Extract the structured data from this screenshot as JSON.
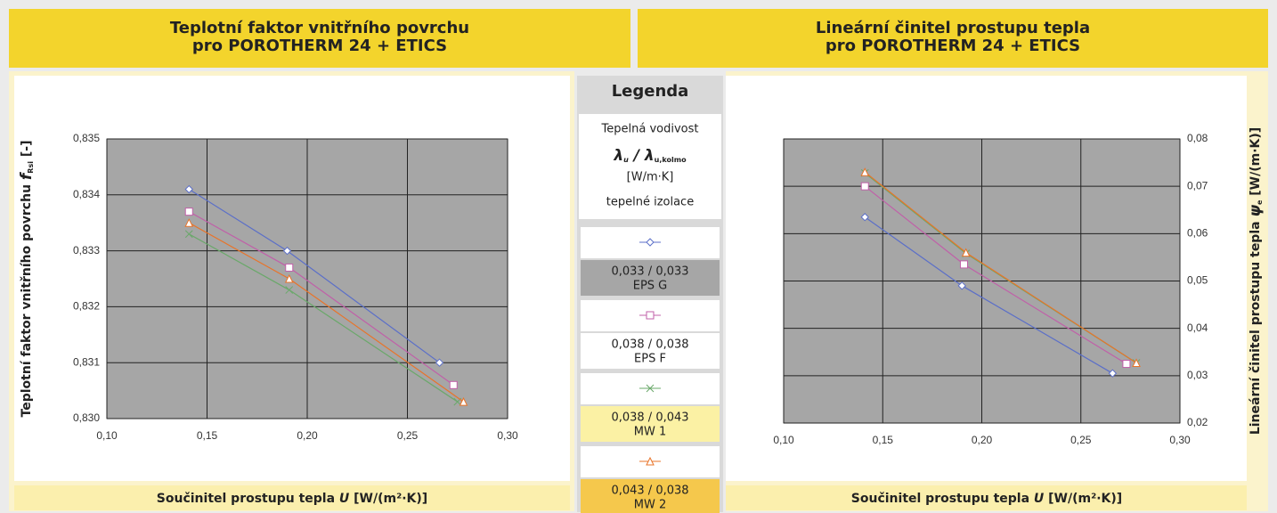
{
  "chart_data": [
    {
      "type": "line",
      "title": [
        "Teplotní faktor vnitřního povrchu",
        "pro POROTHERM 24 + ETICS"
      ],
      "x_label": [
        "Součinitel prostupu tepla ",
        "U",
        " [W/(m²·K)]"
      ],
      "y_label": [
        "Teplotní faktor vnitřního povrchu ",
        "f",
        "Rsi",
        " [-]"
      ],
      "xlim": [
        0.1,
        0.3
      ],
      "xticks": [
        {
          "value": 0.1,
          "label": "0,10"
        },
        {
          "value": 0.15,
          "label": "0,15"
        },
        {
          "value": 0.2,
          "label": "0,20"
        },
        {
          "value": 0.25,
          "label": "0,25"
        },
        {
          "value": 0.3,
          "label": "0,30"
        }
      ],
      "ylim": [
        0.83,
        0.835
      ],
      "yticks": [
        {
          "value": 0.83,
          "label": "0,830"
        },
        {
          "value": 0.831,
          "label": "0,831"
        },
        {
          "value": 0.832,
          "label": "0,832"
        },
        {
          "value": 0.833,
          "label": "0,833"
        },
        {
          "value": 0.834,
          "label": "0,834"
        },
        {
          "value": 0.835,
          "label": "0,835"
        }
      ],
      "y_axis_side": "left",
      "grid": true,
      "series": [
        {
          "name": "0,033 / 0,033",
          "material": "EPS G",
          "color": "#5b6fc8",
          "marker": "diamond",
          "x": [
            0.141,
            0.19,
            0.266
          ],
          "values": [
            0.8341,
            0.833,
            0.831
          ]
        },
        {
          "name": "0,038 / 0,038",
          "material": "EPS F",
          "color": "#c060a8",
          "marker": "square",
          "x": [
            0.141,
            0.191,
            0.273
          ],
          "values": [
            0.8337,
            0.8327,
            0.8306
          ]
        },
        {
          "name": "0,038 / 0,043",
          "material": "MW 1",
          "color": "#6aa86a",
          "marker": "cross",
          "x": [
            0.141,
            0.191,
            0.275
          ],
          "values": [
            0.8333,
            0.8323,
            0.8303
          ]
        },
        {
          "name": "0,043 / 0,038",
          "material": "MW 2",
          "color": "#e8742a",
          "marker": "triangle",
          "x": [
            0.141,
            0.191,
            0.278
          ],
          "values": [
            0.8335,
            0.8325,
            0.8303
          ]
        }
      ]
    },
    {
      "type": "line",
      "title": [
        "Lineární činitel prostupu tepla",
        "pro POROTHERM 24 + ETICS"
      ],
      "x_label": [
        "Součinitel prostupu tepla ",
        "U",
        " [W/(m²·K)]"
      ],
      "y_label": [
        "Lineární činitel prostupu tepla ",
        "ψ",
        "e",
        " [W/(m·K)]"
      ],
      "xlim": [
        0.1,
        0.3
      ],
      "xticks": [
        {
          "value": 0.1,
          "label": "0,10"
        },
        {
          "value": 0.15,
          "label": "0,15"
        },
        {
          "value": 0.2,
          "label": "0,20"
        },
        {
          "value": 0.25,
          "label": "0,25"
        },
        {
          "value": 0.3,
          "label": "0,30"
        }
      ],
      "ylim": [
        0.02,
        0.08
      ],
      "yticks": [
        {
          "value": 0.02,
          "label": "0,02"
        },
        {
          "value": 0.03,
          "label": "0,03"
        },
        {
          "value": 0.04,
          "label": "0,04"
        },
        {
          "value": 0.05,
          "label": "0,05"
        },
        {
          "value": 0.06,
          "label": "0,06"
        },
        {
          "value": 0.07,
          "label": "0,07"
        },
        {
          "value": 0.08,
          "label": "0,08"
        }
      ],
      "y_axis_side": "right",
      "grid": true,
      "series": [
        {
          "color": "#5b6fc8",
          "marker": "diamond",
          "x": [
            0.141,
            0.19,
            0.266
          ],
          "values": [
            0.0635,
            0.049,
            0.0305
          ]
        },
        {
          "color": "#c060a8",
          "marker": "square",
          "x": [
            0.141,
            0.191,
            0.273
          ],
          "values": [
            0.07,
            0.0535,
            0.0325
          ]
        },
        {
          "color": "#6aa86a",
          "marker": "cross",
          "x": [
            0.141,
            0.192,
            0.278
          ],
          "values": [
            0.0728,
            0.0558,
            0.0327
          ]
        },
        {
          "color": "#e8742a",
          "marker": "triangle",
          "x": [
            0.141,
            0.192,
            0.278
          ],
          "values": [
            0.073,
            0.056,
            0.0327
          ]
        }
      ]
    }
  ],
  "legend": {
    "title": "Legenda",
    "line1": "Tepelná vodivost",
    "symbol": [
      "λ",
      "u",
      " / ",
      "λ",
      "u,kolmo"
    ],
    "unit": "[W/m·K]",
    "line2": "tepelné izolace"
  }
}
